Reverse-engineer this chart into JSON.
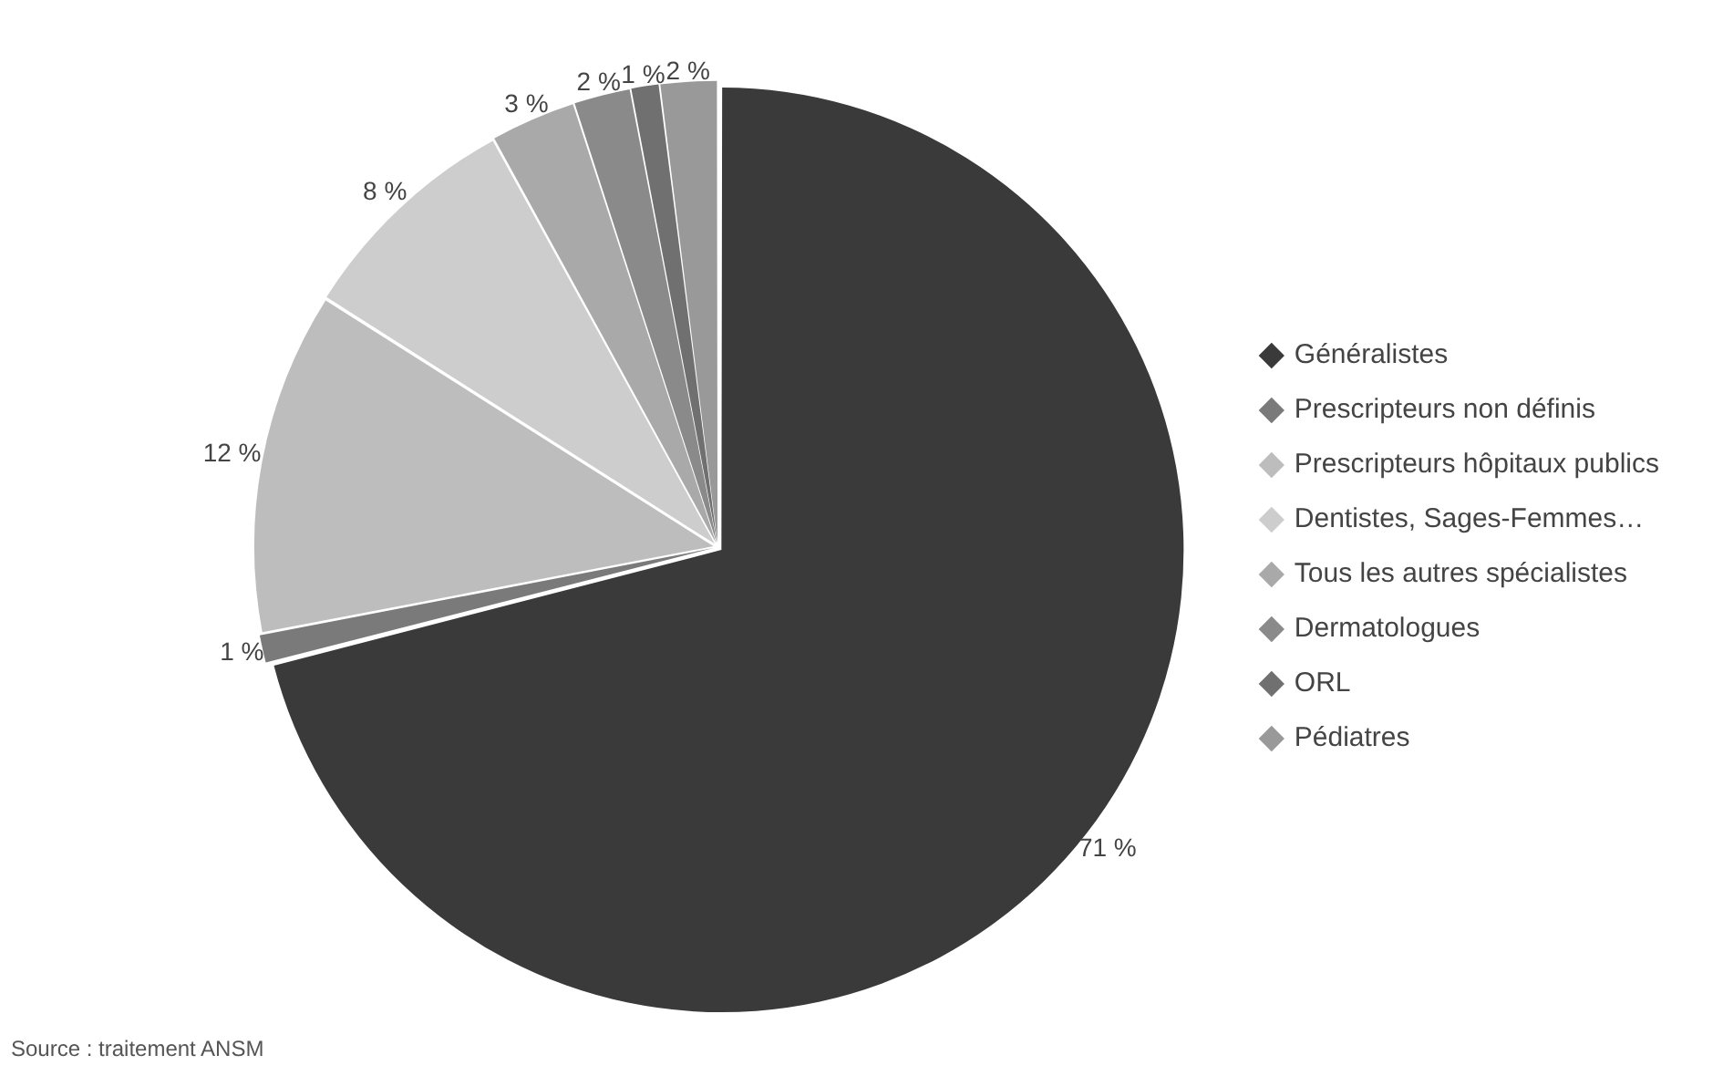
{
  "chart_data": {
    "type": "pie",
    "categories": [
      "Généralistes",
      "Prescripteurs non définis",
      "Prescripteurs hôpitaux publics",
      "Dentistes, Sages-Femmes…",
      "Tous les autres spécialistes",
      "Dermatologues",
      "ORL",
      "Pédiatres"
    ],
    "values": [
      71,
      1,
      12,
      8,
      3,
      2,
      1,
      2
    ],
    "colors": [
      "#3a3a3a",
      "#7a7a7a",
      "#bdbdbd",
      "#cdcdcd",
      "#a9a9a9",
      "#8a8a8a",
      "#707070",
      "#999999"
    ],
    "value_labels": [
      "71 %",
      "1 %",
      "12 %",
      "8 %",
      "3 %",
      "2 %",
      "1 %",
      "2 %"
    ],
    "legend": "right",
    "annotations": [
      "Source : traitement ANSM"
    ]
  }
}
